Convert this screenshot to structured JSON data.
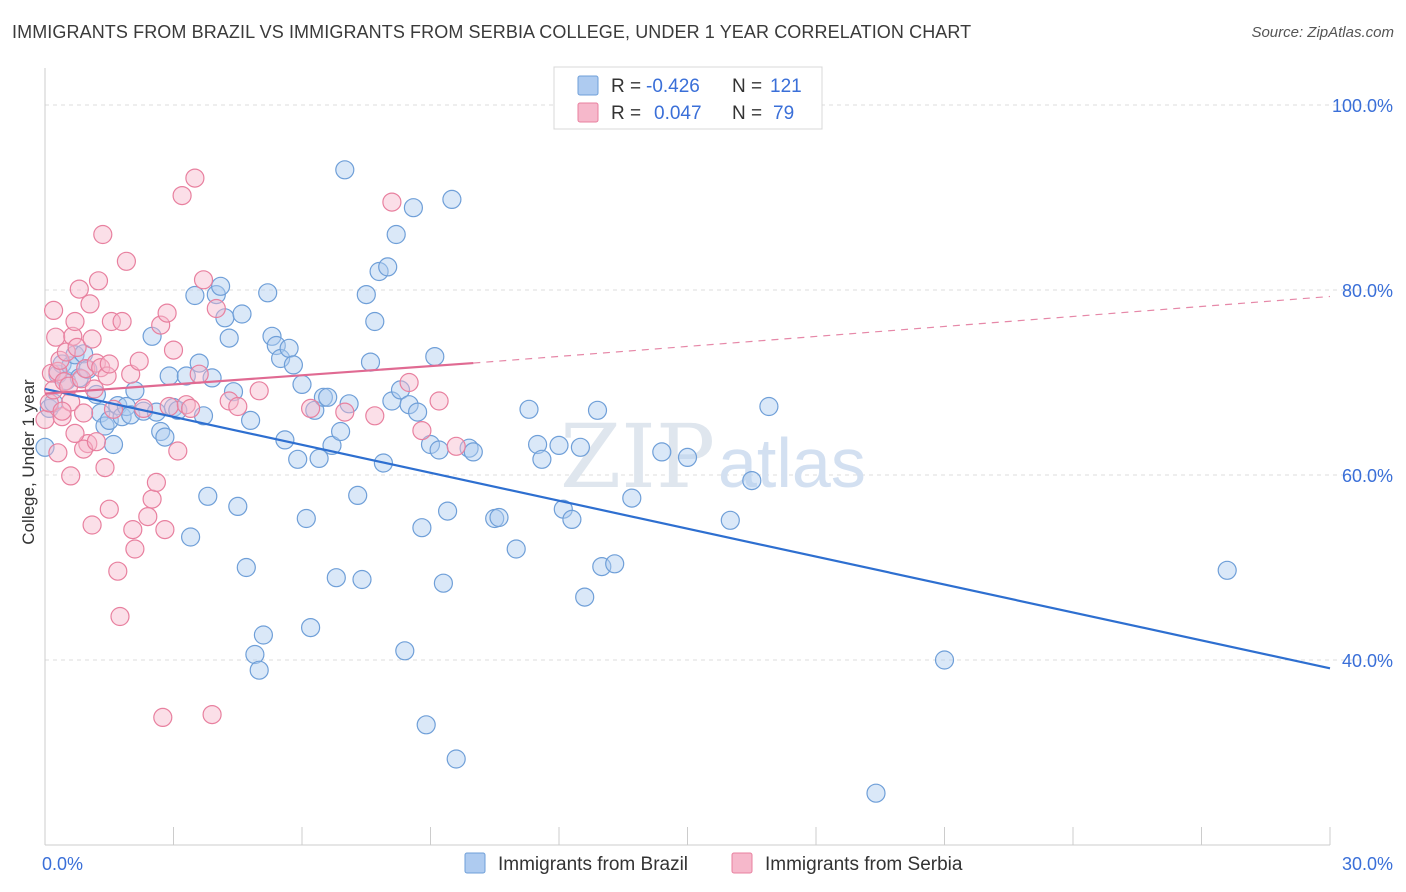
{
  "title": "IMMIGRANTS FROM BRAZIL VS IMMIGRANTS FROM SERBIA COLLEGE, UNDER 1 YEAR CORRELATION CHART",
  "source": "Source: ZipAtlas.com",
  "watermark": {
    "zip": "ZIP",
    "atlas": "atlas"
  },
  "stats_legend": [
    {
      "r_label": "R =",
      "r_value": "-0.426",
      "n_label": "N =",
      "n_value": "121",
      "color": "#aecbf0"
    },
    {
      "r_label": "R =",
      "r_value": "0.047",
      "n_label": "N =",
      "n_value": "79",
      "color": "#f6b8cb"
    }
  ],
  "colors": {
    "brazil_fill": "#aecbf0",
    "brazil_stroke": "#6f9fd8",
    "brazil_line": "#2e6fd0",
    "serbia_fill": "#f6b8cb",
    "serbia_stroke": "#e8809f",
    "serbia_line": "#e06a92",
    "value_text": "#3a6fd8",
    "grid": "#dcdcdc",
    "axis": "#cccccc"
  },
  "chart_data": {
    "type": "scatter",
    "title": "IMMIGRANTS FROM BRAZIL VS IMMIGRANTS FROM SERBIA COLLEGE, UNDER 1 YEAR CORRELATION CHART",
    "xlabel": "",
    "ylabel": "College, Under 1 year",
    "xlim": [
      0,
      30
    ],
    "ylim": [
      20,
      104
    ],
    "x_tick_labels": [
      "0.0%",
      "30.0%"
    ],
    "y_ticks": [
      40,
      60,
      80,
      100
    ],
    "y_tick_labels": [
      "40.0%",
      "60.0%",
      "80.0%",
      "100.0%"
    ],
    "grid": true,
    "legend_position": "bottom-center",
    "series": [
      {
        "name": "Immigrants from Brazil",
        "color": "#aecbf0",
        "trend": {
          "x": [
            0,
            30
          ],
          "y": [
            69.3,
            39.1
          ],
          "style": "solid"
        },
        "points": [
          [
            0.0,
            63.0
          ],
          [
            0.1,
            67.2
          ],
          [
            0.2,
            67.8
          ],
          [
            0.3,
            70.9
          ],
          [
            0.4,
            72.0
          ],
          [
            0.5,
            70.2
          ],
          [
            0.6,
            71.8
          ],
          [
            0.7,
            73.0
          ],
          [
            0.8,
            70.5
          ],
          [
            0.9,
            73.1
          ],
          [
            1.0,
            71.4
          ],
          [
            1.2,
            68.7
          ],
          [
            1.3,
            66.7
          ],
          [
            1.4,
            65.3
          ],
          [
            1.5,
            65.9
          ],
          [
            1.6,
            63.3
          ],
          [
            1.7,
            67.5
          ],
          [
            1.8,
            66.3
          ],
          [
            1.9,
            67.4
          ],
          [
            2.0,
            66.5
          ],
          [
            2.1,
            69.1
          ],
          [
            2.3,
            66.9
          ],
          [
            2.5,
            75.0
          ],
          [
            2.6,
            66.8
          ],
          [
            2.7,
            64.7
          ],
          [
            2.8,
            64.1
          ],
          [
            2.9,
            70.7
          ],
          [
            3.0,
            67.3
          ],
          [
            3.1,
            67.0
          ],
          [
            3.3,
            70.7
          ],
          [
            3.4,
            53.3
          ],
          [
            3.5,
            79.4
          ],
          [
            3.6,
            72.1
          ],
          [
            3.7,
            66.4
          ],
          [
            3.8,
            57.7
          ],
          [
            3.9,
            70.5
          ],
          [
            4.0,
            79.5
          ],
          [
            4.1,
            80.4
          ],
          [
            4.2,
            77.0
          ],
          [
            4.3,
            74.8
          ],
          [
            4.4,
            69.0
          ],
          [
            4.5,
            56.6
          ],
          [
            4.6,
            77.4
          ],
          [
            4.7,
            50.0
          ],
          [
            4.8,
            65.9
          ],
          [
            4.9,
            40.6
          ],
          [
            5.0,
            38.9
          ],
          [
            5.1,
            42.7
          ],
          [
            5.2,
            79.7
          ],
          [
            5.3,
            75.0
          ],
          [
            5.4,
            74.0
          ],
          [
            5.5,
            72.6
          ],
          [
            5.6,
            63.8
          ],
          [
            5.7,
            73.7
          ],
          [
            5.8,
            71.9
          ],
          [
            5.9,
            61.7
          ],
          [
            6.0,
            69.8
          ],
          [
            6.1,
            55.3
          ],
          [
            6.2,
            43.5
          ],
          [
            6.3,
            67.0
          ],
          [
            6.4,
            61.8
          ],
          [
            6.5,
            68.4
          ],
          [
            6.6,
            68.4
          ],
          [
            6.7,
            63.2
          ],
          [
            6.8,
            48.9
          ],
          [
            6.9,
            64.7
          ],
          [
            7.0,
            93.0
          ],
          [
            7.1,
            67.7
          ],
          [
            7.3,
            57.8
          ],
          [
            7.4,
            48.7
          ],
          [
            7.5,
            79.5
          ],
          [
            7.6,
            72.2
          ],
          [
            7.7,
            76.6
          ],
          [
            7.8,
            82.0
          ],
          [
            7.9,
            61.3
          ],
          [
            8.0,
            82.5
          ],
          [
            8.1,
            68.0
          ],
          [
            8.2,
            86.0
          ],
          [
            8.3,
            69.2
          ],
          [
            8.4,
            41.0
          ],
          [
            8.5,
            67.6
          ],
          [
            8.6,
            88.9
          ],
          [
            8.7,
            66.8
          ],
          [
            8.8,
            54.3
          ],
          [
            8.9,
            33.0
          ],
          [
            9.0,
            63.3
          ],
          [
            9.1,
            72.8
          ],
          [
            9.2,
            62.7
          ],
          [
            9.3,
            48.3
          ],
          [
            9.4,
            56.1
          ],
          [
            9.5,
            89.8
          ],
          [
            9.6,
            29.3
          ],
          [
            9.9,
            62.9
          ],
          [
            10.0,
            62.5
          ],
          [
            10.5,
            55.3
          ],
          [
            10.6,
            55.4
          ],
          [
            11.0,
            52.0
          ],
          [
            11.3,
            67.1
          ],
          [
            11.5,
            63.3
          ],
          [
            11.6,
            61.7
          ],
          [
            12.0,
            63.2
          ],
          [
            12.1,
            56.3
          ],
          [
            12.3,
            55.2
          ],
          [
            12.5,
            63.0
          ],
          [
            12.6,
            46.8
          ],
          [
            12.9,
            67.0
          ],
          [
            13.0,
            50.1
          ],
          [
            13.3,
            50.4
          ],
          [
            13.7,
            57.5
          ],
          [
            14.4,
            62.5
          ],
          [
            15.0,
            61.9
          ],
          [
            16.0,
            55.1
          ],
          [
            16.5,
            59.4
          ],
          [
            16.9,
            67.4
          ],
          [
            19.4,
            25.6
          ],
          [
            21.0,
            40.0
          ],
          [
            27.6,
            49.7
          ]
        ]
      },
      {
        "name": "Immigrants from Serbia",
        "color": "#f6b8cb",
        "trend": {
          "x": [
            0,
            10
          ],
          "y": [
            68.8,
            72.1
          ],
          "style": "solid",
          "extended_x": [
            10,
            30
          ],
          "extended_y": [
            72.1,
            79.3
          ]
        },
        "points": [
          [
            0.0,
            66.0
          ],
          [
            0.1,
            67.8
          ],
          [
            0.15,
            71.0
          ],
          [
            0.2,
            69.2
          ],
          [
            0.25,
            74.9
          ],
          [
            0.3,
            71.2
          ],
          [
            0.35,
            72.4
          ],
          [
            0.4,
            66.3
          ],
          [
            0.45,
            70.1
          ],
          [
            0.5,
            73.3
          ],
          [
            0.55,
            69.6
          ],
          [
            0.6,
            67.9
          ],
          [
            0.65,
            75.0
          ],
          [
            0.7,
            76.6
          ],
          [
            0.75,
            73.8
          ],
          [
            0.8,
            80.1
          ],
          [
            0.85,
            70.4
          ],
          [
            0.9,
            66.7
          ],
          [
            0.95,
            71.5
          ],
          [
            1.0,
            63.4
          ],
          [
            1.05,
            78.5
          ],
          [
            1.1,
            74.7
          ],
          [
            1.15,
            69.3
          ],
          [
            1.2,
            72.1
          ],
          [
            1.25,
            81.0
          ],
          [
            1.3,
            71.6
          ],
          [
            1.35,
            86.0
          ],
          [
            1.4,
            60.8
          ],
          [
            1.45,
            70.7
          ],
          [
            1.5,
            72.0
          ],
          [
            1.55,
            76.6
          ],
          [
            1.6,
            67.1
          ],
          [
            1.7,
            49.6
          ],
          [
            1.75,
            44.7
          ],
          [
            1.8,
            76.6
          ],
          [
            1.9,
            83.1
          ],
          [
            2.0,
            70.9
          ],
          [
            2.05,
            54.1
          ],
          [
            2.1,
            52.0
          ],
          [
            2.2,
            72.3
          ],
          [
            2.3,
            67.2
          ],
          [
            2.4,
            55.5
          ],
          [
            2.5,
            57.4
          ],
          [
            2.6,
            59.2
          ],
          [
            2.7,
            76.2
          ],
          [
            2.75,
            33.8
          ],
          [
            2.8,
            54.1
          ],
          [
            2.85,
            77.5
          ],
          [
            2.9,
            67.4
          ],
          [
            3.0,
            73.5
          ],
          [
            3.1,
            62.6
          ],
          [
            3.2,
            90.2
          ],
          [
            3.3,
            67.6
          ],
          [
            3.4,
            67.2
          ],
          [
            3.5,
            92.1
          ],
          [
            3.6,
            70.9
          ],
          [
            3.7,
            81.1
          ],
          [
            3.9,
            34.1
          ],
          [
            4.0,
            78.0
          ],
          [
            4.3,
            68.0
          ],
          [
            4.5,
            67.4
          ],
          [
            5.0,
            69.1
          ],
          [
            6.2,
            67.2
          ],
          [
            7.0,
            66.8
          ],
          [
            7.7,
            66.4
          ],
          [
            8.1,
            89.5
          ],
          [
            8.5,
            70.0
          ],
          [
            8.8,
            64.8
          ],
          [
            9.2,
            68.0
          ],
          [
            9.6,
            63.1
          ],
          [
            0.3,
            62.4
          ],
          [
            0.6,
            59.9
          ],
          [
            0.9,
            62.8
          ],
          [
            1.2,
            63.6
          ],
          [
            1.5,
            56.3
          ],
          [
            1.1,
            54.6
          ],
          [
            0.4,
            66.9
          ],
          [
            0.7,
            64.5
          ],
          [
            0.2,
            77.8
          ]
        ]
      }
    ]
  }
}
